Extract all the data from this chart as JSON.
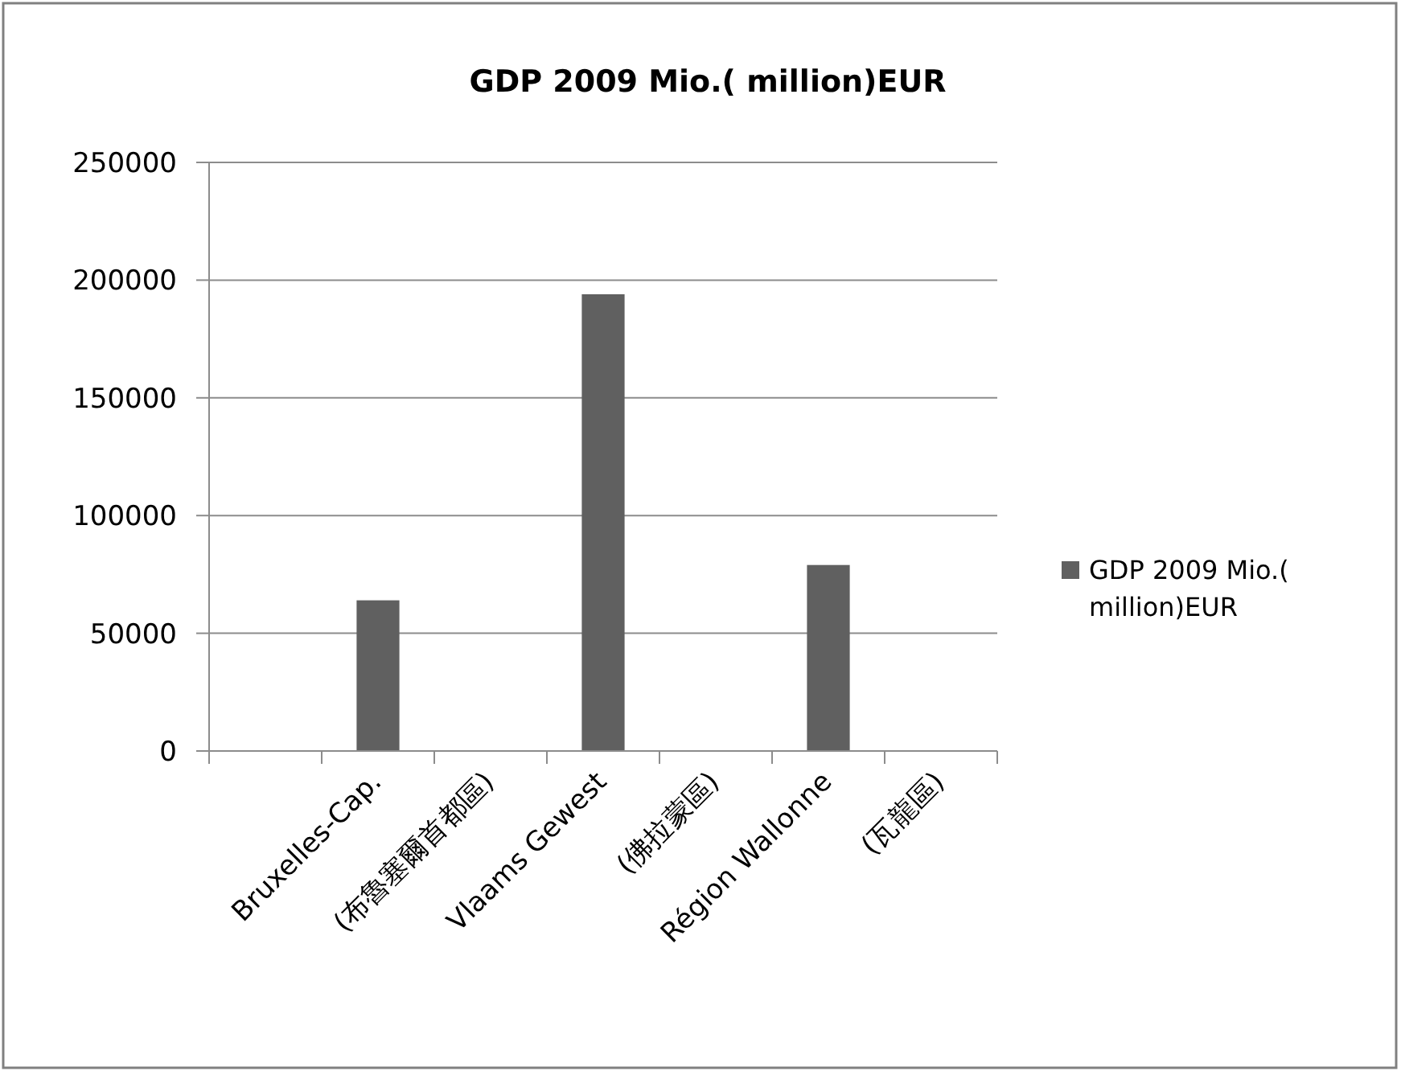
{
  "chart_data": {
    "type": "bar",
    "title": "GDP 2009 Mio.( million)EUR",
    "categories": [
      null,
      "Bruxelles-Cap.",
      "(布魯塞爾首都區)",
      "Vlaams Gewest",
      "(佛拉蒙區)",
      "Région Wallonne",
      "(瓦龍區)"
    ],
    "series": [
      {
        "name": "GDP 2009 Mio.( million)EUR",
        "color": "#606060",
        "values": [
          null,
          64000,
          null,
          194000,
          null,
          79000,
          null
        ]
      }
    ],
    "ylim": [
      0,
      250000
    ],
    "yticks": [
      0,
      50000,
      100000,
      150000,
      200000,
      250000
    ],
    "grid": "y",
    "legend": "right"
  }
}
